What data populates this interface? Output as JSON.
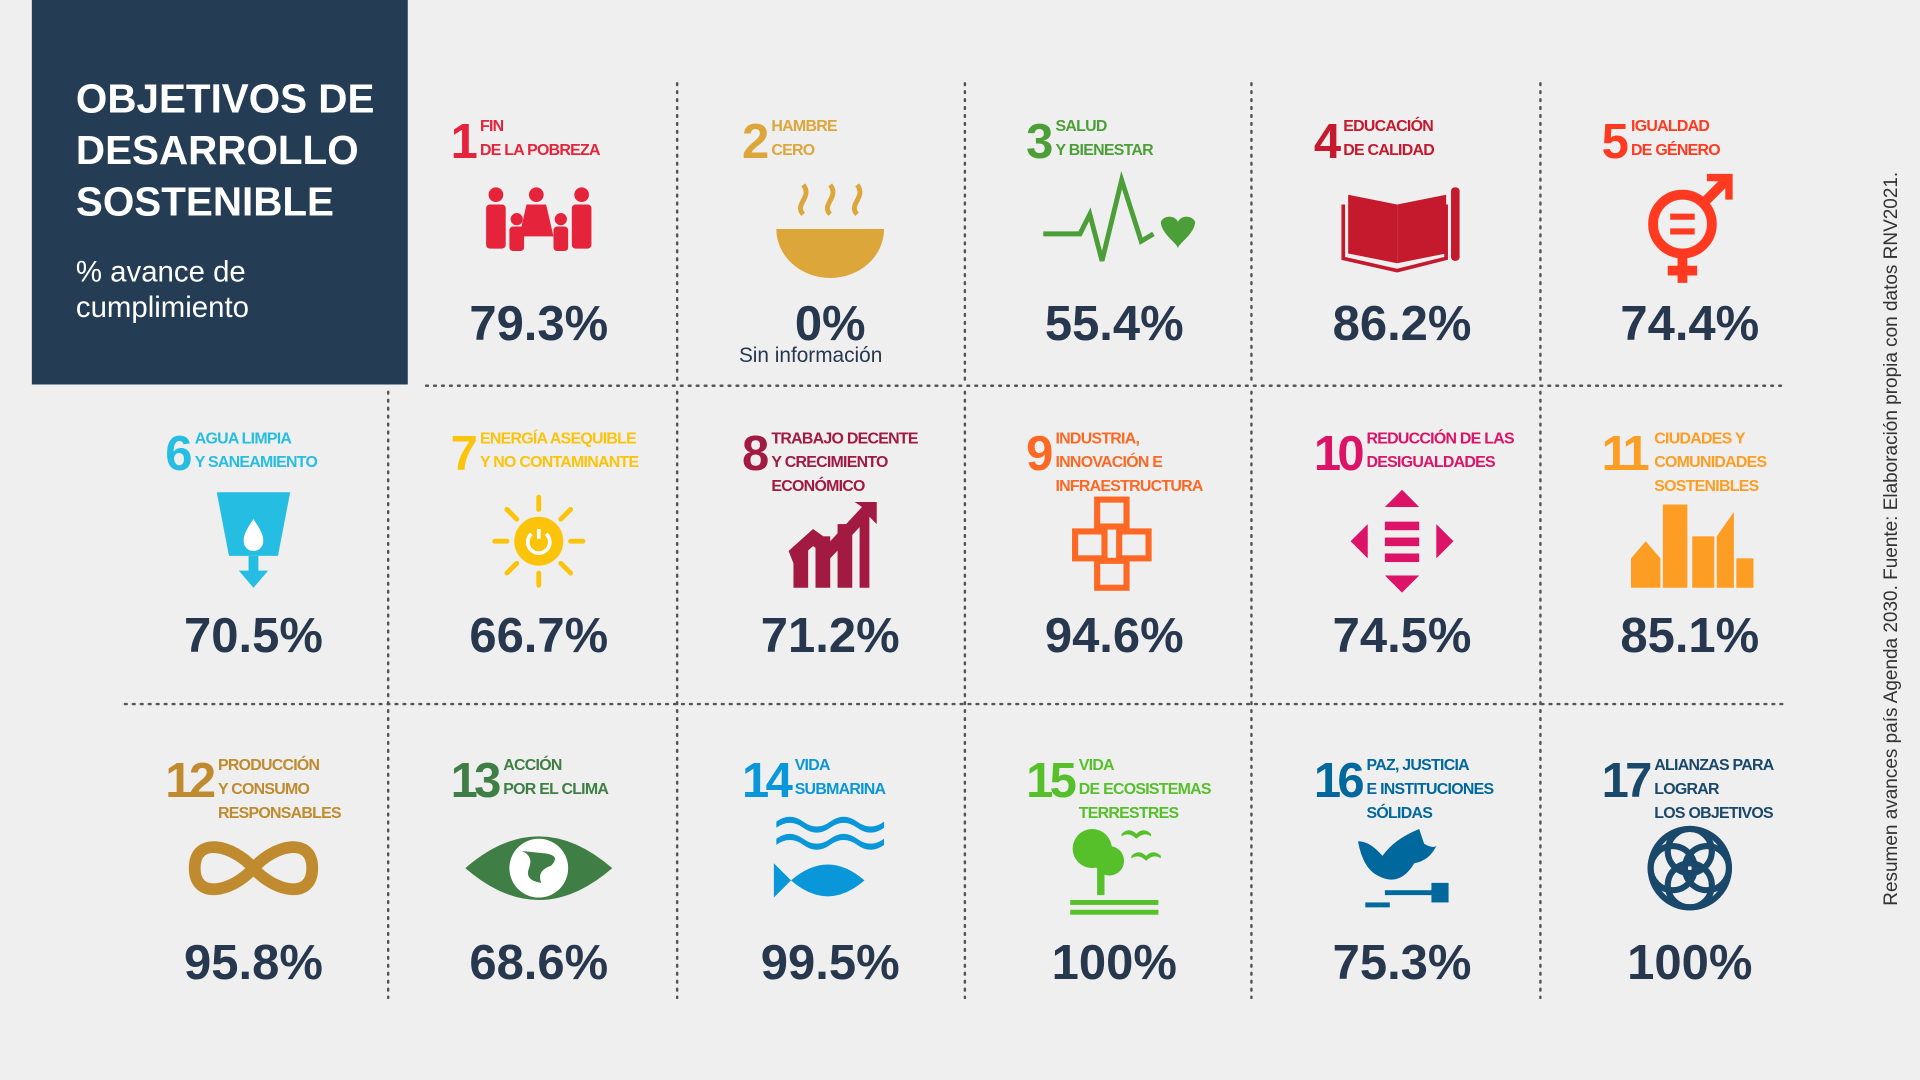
{
  "header": {
    "title": [
      "OBJETIVOS DE",
      "DESARROLLO",
      "SOSTENIBLE"
    ],
    "subtitle": [
      "% avance de",
      "cumplimiento"
    ]
  },
  "source": "Resumen avances país Agenda 2030. Fuente: Elaboración propia con datos RNV2021.",
  "goals": [
    {
      "number": 1,
      "label": [
        "FIN",
        "DE LA POBREZA"
      ],
      "value": "79.3%",
      "color": "#e5243b"
    },
    {
      "number": 2,
      "label": [
        "HAMBRE",
        "CERO"
      ],
      "value": "0%",
      "note": "Sin información",
      "color": "#dda63a"
    },
    {
      "number": 3,
      "label": [
        "SALUD",
        "Y BIENESTAR"
      ],
      "value": "55.4%",
      "color": "#4c9f38"
    },
    {
      "number": 4,
      "label": [
        "EDUCACIÓN",
        "DE CALIDAD"
      ],
      "value": "86.2%",
      "color": "#c5192d"
    },
    {
      "number": 5,
      "label": [
        "IGUALDAD",
        "DE GÉNERO"
      ],
      "value": "74.4%",
      "color": "#ff3a21"
    },
    {
      "number": 6,
      "label": [
        "AGUA LIMPIA",
        "Y SANEAMIENTO"
      ],
      "value": "70.5%",
      "color": "#26bde2"
    },
    {
      "number": 7,
      "label": [
        "ENERGÍA ASEQUIBLE",
        "Y NO CONTAMINANTE"
      ],
      "value": "66.7%",
      "color": "#fcc30b"
    },
    {
      "number": 8,
      "label": [
        "TRABAJO DECENTE",
        "Y CRECIMIENTO",
        "ECONÓMICO"
      ],
      "value": "71.2%",
      "color": "#a21942"
    },
    {
      "number": 9,
      "label": [
        "INDUSTRIA,",
        "INNOVACIÓN E",
        "INFRAESTRUCTURA"
      ],
      "value": "94.6%",
      "color": "#fd6925"
    },
    {
      "number": 10,
      "label": [
        "REDUCCIÓN DE LAS",
        "DESIGUALDADES"
      ],
      "value": "74.5%",
      "color": "#dd1367"
    },
    {
      "number": 11,
      "label": [
        "CIUDADES Y",
        "COMUNIDADES",
        "SOSTENIBLES"
      ],
      "value": "85.1%",
      "color": "#fd9d24"
    },
    {
      "number": 12,
      "label": [
        "PRODUCCIÓN",
        "Y CONSUMO",
        "RESPONSABLES"
      ],
      "value": "95.8%",
      "color": "#bf8b2e"
    },
    {
      "number": 13,
      "label": [
        "ACCIÓN",
        "POR EL CLIMA"
      ],
      "value": "68.6%",
      "color": "#3f7e44"
    },
    {
      "number": 14,
      "label": [
        "VIDA",
        "SUBMARINA"
      ],
      "value": "99.5%",
      "color": "#0a97d9"
    },
    {
      "number": 15,
      "label": [
        "VIDA",
        "DE ECOSISTEMAS",
        "TERRESTRES"
      ],
      "value": "100%",
      "color": "#56c02b"
    },
    {
      "number": 16,
      "label": [
        "PAZ, JUSTICIA",
        "E INSTITUCIONES",
        "SÓLIDAS"
      ],
      "value": "75.3%",
      "color": "#00689d"
    },
    {
      "number": 17,
      "label": [
        "ALIANZAS PARA",
        "LOGRAR",
        "LOS OBJETIVOS"
      ],
      "value": "100%",
      "color": "#19486a"
    }
  ]
}
